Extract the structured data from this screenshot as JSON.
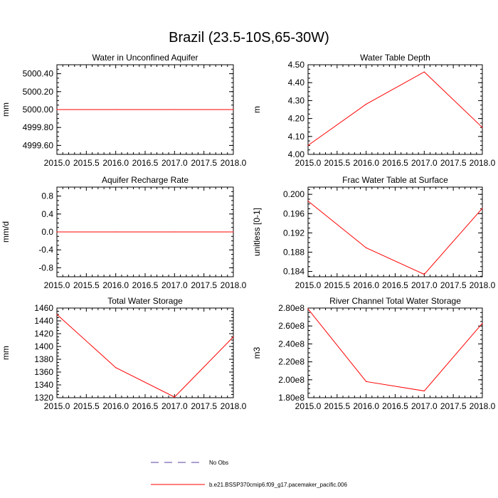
{
  "title": "Brazil (23.5-10S,65-30W)",
  "colors": {
    "series": "#ff0000",
    "obs": "#5a3fa0",
    "axis": "#000000"
  },
  "legend": {
    "placement": "bottom",
    "items": [
      {
        "label": "No Obs",
        "style": "dashed"
      },
      {
        "label": "b.e21.BSSP370cmip6.f09_g17.pacemaker_pacific.006",
        "style": "solid"
      }
    ]
  },
  "chart_data": [
    {
      "type": "line",
      "title": "Water in Unconfined Aquifer",
      "ylabel": "mm",
      "xlim": [
        2015.0,
        2018.0
      ],
      "ylim": [
        4999.5,
        5000.5
      ],
      "xticks": [
        "2015.0",
        "2015.5",
        "2016.0",
        "2016.5",
        "2017.0",
        "2017.5",
        "2018.0"
      ],
      "yticks": [
        {
          "v": 4999.6,
          "label": "4999.60"
        },
        {
          "v": 4999.8,
          "label": "4999.80"
        },
        {
          "v": 5000.0,
          "label": "5000.00"
        },
        {
          "v": 5000.2,
          "label": "5000.20"
        },
        {
          "v": 5000.4,
          "label": "5000.40"
        }
      ],
      "x": [
        2015,
        2016,
        2017,
        2018
      ],
      "y": [
        5000.0,
        5000.0,
        5000.0,
        5000.0
      ]
    },
    {
      "type": "line",
      "title": "Water Table Depth",
      "ylabel": "m",
      "xlim": [
        2015.0,
        2018.0
      ],
      "ylim": [
        4.0,
        4.5
      ],
      "xticks": [
        "2015.0",
        "2015.5",
        "2016.0",
        "2016.5",
        "2017.0",
        "2017.5",
        "2018.0"
      ],
      "yticks": [
        {
          "v": 4.0,
          "label": "4.00"
        },
        {
          "v": 4.1,
          "label": "4.10"
        },
        {
          "v": 4.2,
          "label": "4.20"
        },
        {
          "v": 4.3,
          "label": "4.30"
        },
        {
          "v": 4.4,
          "label": "4.40"
        },
        {
          "v": 4.5,
          "label": "4.50"
        }
      ],
      "x": [
        2015,
        2016,
        2017,
        2018
      ],
      "y": [
        4.05,
        4.28,
        4.46,
        4.15
      ]
    },
    {
      "type": "line",
      "title": "Aquifer Recharge Rate",
      "ylabel": "mm/d",
      "xlim": [
        2015.0,
        2018.0
      ],
      "ylim": [
        -1.0,
        1.0
      ],
      "xticks": [
        "2015.0",
        "2015.5",
        "2016.0",
        "2016.5",
        "2017.0",
        "2017.5",
        "2018.0"
      ],
      "yticks": [
        {
          "v": -0.8,
          "label": "-0.8"
        },
        {
          "v": -0.4,
          "label": "-0.4"
        },
        {
          "v": 0.0,
          "label": "0.0"
        },
        {
          "v": 0.4,
          "label": "0.4"
        },
        {
          "v": 0.8,
          "label": "0.8"
        }
      ],
      "x": [
        2015,
        2016,
        2017,
        2018
      ],
      "y": [
        0.0,
        0.0,
        0.0,
        0.0
      ]
    },
    {
      "type": "line",
      "title": "Frac Water Table at Surface",
      "ylabel": "unitless [0-1]",
      "xlim": [
        2015.0,
        2018.0
      ],
      "ylim": [
        0.1829,
        0.2015
      ],
      "xticks": [
        "2015.0",
        "2015.5",
        "2016.0",
        "2016.5",
        "2017.0",
        "2017.5",
        "2018.0"
      ],
      "yticks": [
        {
          "v": 0.184,
          "label": "0.184"
        },
        {
          "v": 0.188,
          "label": "0.188"
        },
        {
          "v": 0.192,
          "label": "0.192"
        },
        {
          "v": 0.196,
          "label": "0.196"
        },
        {
          "v": 0.2,
          "label": "0.200"
        }
      ],
      "x": [
        2015,
        2016,
        2017,
        2018
      ],
      "y": [
        0.1986,
        0.1889,
        0.1834,
        0.1971
      ]
    },
    {
      "type": "line",
      "title": "Total Water Storage",
      "ylabel": "mm",
      "xlim": [
        2015.0,
        2018.0
      ],
      "ylim": [
        1320,
        1460
      ],
      "xticks": [
        "2015.0",
        "2015.5",
        "2016.0",
        "2016.5",
        "2017.0",
        "2017.5",
        "2018.0"
      ],
      "yticks": [
        {
          "v": 1320,
          "label": "1320"
        },
        {
          "v": 1340,
          "label": "1340"
        },
        {
          "v": 1360,
          "label": "1360"
        },
        {
          "v": 1380,
          "label": "1380"
        },
        {
          "v": 1400,
          "label": "1400"
        },
        {
          "v": 1420,
          "label": "1420"
        },
        {
          "v": 1440,
          "label": "1440"
        },
        {
          "v": 1460,
          "label": "1460"
        }
      ],
      "x": [
        2015,
        2016,
        2017,
        2018
      ],
      "y": [
        1450,
        1367,
        1321,
        1415
      ]
    },
    {
      "type": "line",
      "title": "River Channel Total Water Storage",
      "ylabel": "m3",
      "xlim": [
        2015.0,
        2018.0
      ],
      "ylim": [
        180000000,
        280000000
      ],
      "xticks": [
        "2015.0",
        "2015.5",
        "2016.0",
        "2016.5",
        "2017.0",
        "2017.5",
        "2018.0"
      ],
      "yticks": [
        {
          "v": 180000000,
          "label": "1.80e8"
        },
        {
          "v": 200000000,
          "label": "2.00e8"
        },
        {
          "v": 220000000,
          "label": "2.20e8"
        },
        {
          "v": 240000000,
          "label": "2.40e8"
        },
        {
          "v": 260000000,
          "label": "2.60e8"
        },
        {
          "v": 280000000,
          "label": "2.80e8"
        }
      ],
      "x": [
        2015,
        2016,
        2017,
        2018
      ],
      "y": [
        279000000,
        198000000,
        187500000,
        263000000
      ]
    }
  ]
}
